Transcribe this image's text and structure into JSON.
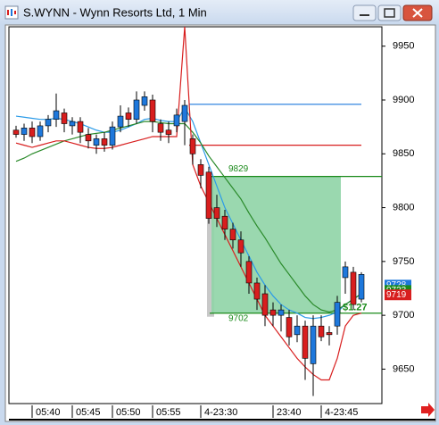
{
  "chart_data": {
    "type": "candlestick",
    "title": "S.WYNN - Wynn Resorts Ltd, 1 Min",
    "categories": [
      null,
      null,
      "05:40",
      null,
      null,
      null,
      null,
      "05:45",
      null,
      null,
      null,
      null,
      "05:50",
      null,
      null,
      null,
      null,
      "05:55",
      null,
      null,
      null,
      null,
      null,
      "4-23:30",
      null,
      null,
      null,
      null,
      null,
      null,
      null,
      null,
      "23:40",
      null,
      null,
      null,
      null,
      null,
      "4-23:45",
      null,
      null,
      null,
      null,
      null
    ],
    "candles": {
      "open": [
        9872,
        9868,
        9874,
        9866,
        9876,
        9882,
        9888,
        9876,
        9880,
        9868,
        9858,
        9864,
        9858,
        9875,
        9888,
        9882,
        9895,
        9900,
        9878,
        9872,
        9876,
        9880,
        9864,
        9840,
        9833,
        9800,
        9792,
        9780,
        9770,
        9750,
        9730,
        9720,
        9705,
        9700,
        9698,
        9682,
        9690,
        9655,
        9690,
        9684,
        9690,
        9735,
        9740,
        9715
      ],
      "high": [
        9876,
        9878,
        9880,
        9880,
        9886,
        9906,
        9892,
        9884,
        9884,
        9874,
        9868,
        9870,
        9880,
        9895,
        9893,
        9908,
        9908,
        9905,
        9882,
        9880,
        9892,
        9900,
        9868,
        9845,
        9838,
        9812,
        9798,
        9786,
        9778,
        9755,
        9735,
        9728,
        9712,
        9710,
        9705,
        9700,
        9695,
        9700,
        9700,
        9690,
        9718,
        9750,
        9745,
        9740
      ],
      "low": [
        9865,
        9862,
        9860,
        9862,
        9870,
        9875,
        9870,
        9868,
        9860,
        9855,
        9850,
        9852,
        9854,
        9870,
        9875,
        9878,
        9890,
        9870,
        9862,
        9860,
        9870,
        9858,
        9840,
        9818,
        9785,
        9782,
        9770,
        9762,
        9745,
        9720,
        9705,
        9690,
        9690,
        9685,
        9672,
        9675,
        9640,
        9625,
        9676,
        9672,
        9682,
        9720,
        9705,
        9712
      ],
      "close": [
        9868,
        9874,
        9866,
        9876,
        9882,
        9890,
        9878,
        9880,
        9870,
        9862,
        9864,
        9858,
        9875,
        9885,
        9882,
        9900,
        9903,
        9880,
        9870,
        9868,
        9886,
        9895,
        9850,
        9830,
        9790,
        9790,
        9780,
        9770,
        9758,
        9730,
        9715,
        9700,
        9700,
        9705,
        9680,
        9690,
        9660,
        9690,
        9680,
        9682,
        9712,
        9745,
        9710,
        9738
      ]
    },
    "up_color": "#1e78dc",
    "down_color": "#d81e1e",
    "series": [
      {
        "color": "#2b9be8",
        "values": [
          9885,
          9884,
          9883,
          9882,
          9882,
          9883,
          9882,
          9880,
          9878,
          9875,
          9872,
          9870,
          9870,
          9872,
          9875,
          9878,
          9882,
          9883,
          9881,
          9880,
          9880,
          9893,
          9880,
          9860,
          9840,
          9820,
          9800,
          9785,
          9770,
          9755,
          9740,
          9728,
          9718,
          9710,
          9705,
          9702,
          9698,
          9697,
          9698,
          9700,
          9703,
          9710,
          9715,
          9720
        ]
      },
      {
        "color": "#2a8a2a",
        "values": [
          9843,
          9846,
          9850,
          9853,
          9856,
          9859,
          9862,
          9864,
          9866,
          9868,
          9869,
          9870,
          9872,
          9874,
          9876,
          9878,
          9880,
          9880,
          9879,
          9878,
          9878,
          9878,
          9870,
          9860,
          9848,
          9838,
          9828,
          9818,
          9808,
          9795,
          9783,
          9772,
          9760,
          9748,
          9738,
          9728,
          9718,
          9710,
          9705,
          9703,
          9705,
          9710,
          9715,
          9720
        ]
      },
      {
        "color": "#d81e1e",
        "values": [
          9860,
          9858,
          9856,
          9858,
          9860,
          9862,
          9862,
          9860,
          9858,
          9856,
          9855,
          9855,
          9856,
          9858,
          9860,
          9862,
          9864,
          9866,
          9866,
          9866,
          9866,
          9968,
          9840,
          9820,
          9805,
          9790,
          9775,
          9760,
          9745,
          9730,
          9715,
          9700,
          9690,
          9680,
          9670,
          9660,
          9652,
          9645,
          9640,
          9640,
          9660,
          9690,
          9700,
          9702
        ]
      }
    ],
    "levels": [
      {
        "value": 9896,
        "color": "#1e78dc"
      },
      {
        "value": 9858,
        "color": "#d81e1e"
      },
      {
        "value": 9829,
        "color": "#1a8a1a"
      },
      {
        "value": 9702,
        "color": "#1a8a1a"
      }
    ],
    "annotation": "$1.27",
    "price_tags": [
      {
        "value": 9728,
        "color": "#1e78dc"
      },
      {
        "value": 9723,
        "color": "#1a8a1a"
      },
      {
        "value": 9719,
        "color": "#d81e1e"
      }
    ],
    "ylim": [
      9618,
      9968
    ],
    "yticks": [
      9650,
      9700,
      9750,
      9800,
      9850,
      9900,
      9950
    ]
  }
}
